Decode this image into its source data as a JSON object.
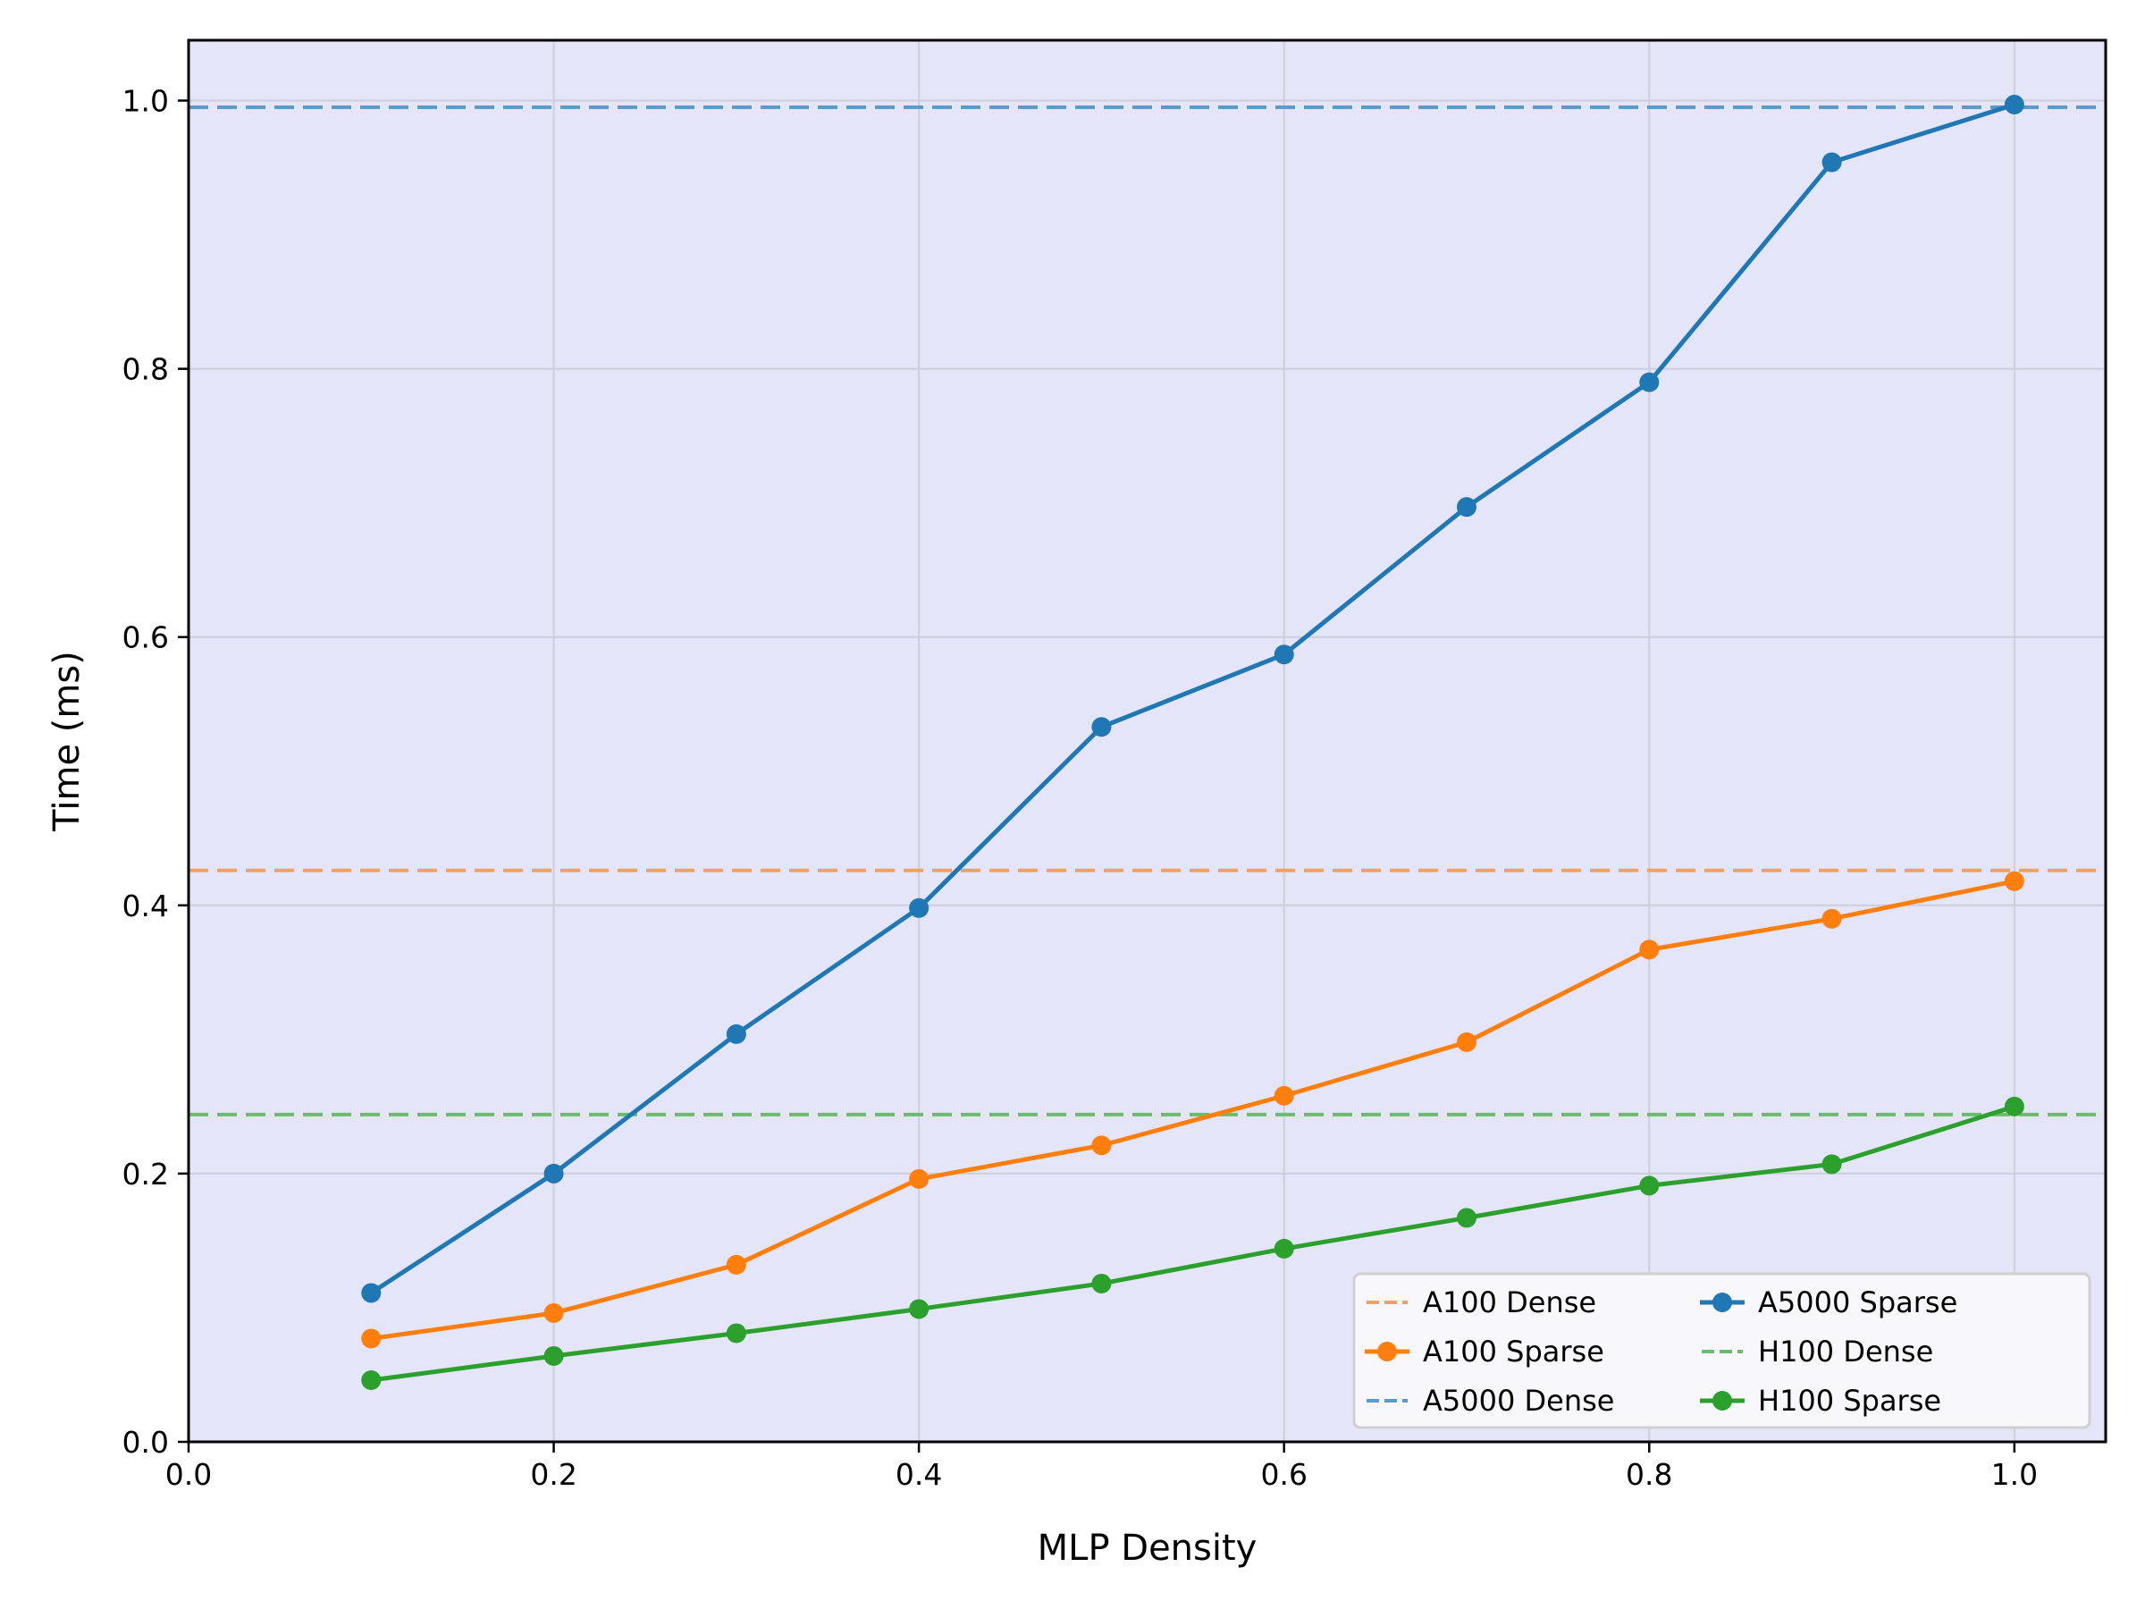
{
  "chart_data": {
    "type": "line",
    "title": "",
    "xlabel": "MLP Density",
    "ylabel": "Time (ms)",
    "xlim": [
      0.0,
      1.05
    ],
    "ylim": [
      0.0,
      1.045
    ],
    "grid": true,
    "legend_position": "lower right",
    "legend_columns": 2,
    "background_color": "#e4e5f8",
    "x_ticks": [
      "0.0",
      "0.2",
      "0.4",
      "0.6",
      "0.8",
      "1.0"
    ],
    "y_ticks": [
      "0.0",
      "0.2",
      "0.4",
      "0.6",
      "0.8",
      "1.0"
    ],
    "x": [
      0.1,
      0.2,
      0.3,
      0.4,
      0.5,
      0.6,
      0.7,
      0.8,
      0.9,
      1.0
    ],
    "series": [
      {
        "name": "A100 Dense",
        "style": "dashed",
        "color": "#f5a05a",
        "hline": 0.426
      },
      {
        "name": "A100 Sparse",
        "style": "solid-marker",
        "color": "#ff7f0e",
        "values": [
          0.077,
          0.096,
          0.132,
          0.196,
          0.221,
          0.258,
          0.298,
          0.367,
          0.39,
          0.418
        ]
      },
      {
        "name": "A5000 Dense",
        "style": "dashed",
        "color": "#5b9bcb",
        "hline": 0.995
      },
      {
        "name": "A5000 Sparse",
        "style": "solid-marker",
        "color": "#1f77b4",
        "values": [
          0.111,
          0.2,
          0.304,
          0.398,
          0.533,
          0.587,
          0.697,
          0.79,
          0.954,
          0.997
        ]
      },
      {
        "name": "H100 Dense",
        "style": "dashed",
        "color": "#6dbb6d",
        "hline": 0.244
      },
      {
        "name": "H100 Sparse",
        "style": "solid-marker",
        "color": "#2ca02c",
        "values": [
          0.046,
          0.064,
          0.081,
          0.099,
          0.118,
          0.144,
          0.167,
          0.191,
          0.207,
          0.25
        ]
      }
    ]
  }
}
